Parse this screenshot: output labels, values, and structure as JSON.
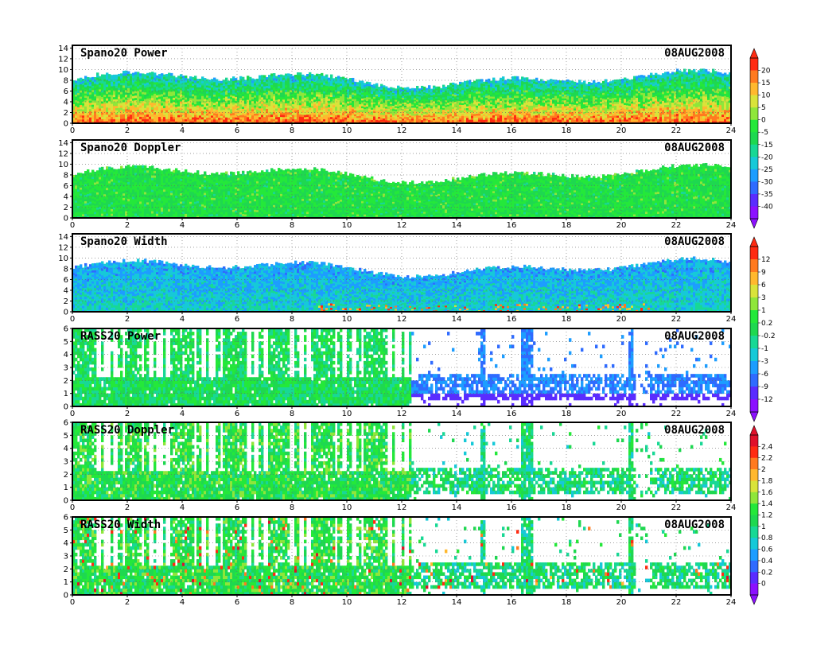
{
  "chart_data": [
    {
      "type": "heatmap",
      "title": "Spano20 Power",
      "date": "08AUG2008",
      "xlim": [
        0,
        24
      ],
      "xticks": [
        0,
        2,
        4,
        6,
        8,
        10,
        12,
        14,
        16,
        18,
        20,
        22,
        24
      ],
      "ylim": [
        0,
        14.5
      ],
      "yticks": [
        0,
        2,
        4,
        6,
        8,
        10,
        12,
        14
      ],
      "profile": "spano",
      "palette": "power",
      "bias": 0.62,
      "seed": 11,
      "grid": true
    },
    {
      "type": "heatmap",
      "title": "Spano20 Doppler",
      "date": "08AUG2008",
      "xlim": [
        0,
        24
      ],
      "xticks": [
        0,
        2,
        4,
        6,
        8,
        10,
        12,
        14,
        16,
        18,
        20,
        22,
        24
      ],
      "ylim": [
        0,
        14.5
      ],
      "yticks": [
        0,
        2,
        4,
        6,
        8,
        10,
        12,
        14
      ],
      "profile": "spano",
      "palette": "power",
      "bias": 0.45,
      "seed": 23,
      "grid": true
    },
    {
      "type": "heatmap",
      "title": "Spano20 Width",
      "date": "08AUG2008",
      "xlim": [
        0,
        24
      ],
      "xticks": [
        0,
        2,
        4,
        6,
        8,
        10,
        12,
        14,
        16,
        18,
        20,
        22,
        24
      ],
      "ylim": [
        0,
        14.5
      ],
      "yticks": [
        0,
        2,
        4,
        6,
        8,
        10,
        12,
        14
      ],
      "profile": "spano",
      "palette": "width",
      "bias": 0.32,
      "seed": 37,
      "grid": true
    },
    {
      "type": "heatmap",
      "title": "RASS20 Power",
      "date": "08AUG2008",
      "xlim": [
        0,
        24
      ],
      "xticks": [
        0,
        2,
        4,
        6,
        8,
        10,
        12,
        14,
        16,
        18,
        20,
        22,
        24
      ],
      "ylim": [
        0,
        6
      ],
      "yticks": [
        0,
        1,
        2,
        3,
        4,
        5,
        6
      ],
      "profile": "rass",
      "palette": "width",
      "bias": 0.5,
      "seed": 41,
      "grid": true
    },
    {
      "type": "heatmap",
      "title": "RASS20 Doppler",
      "date": "08AUG2008",
      "xlim": [
        0,
        24
      ],
      "xticks": [
        0,
        2,
        4,
        6,
        8,
        10,
        12,
        14,
        16,
        18,
        20,
        22,
        24
      ],
      "ylim": [
        0,
        6
      ],
      "yticks": [
        0,
        1,
        2,
        3,
        4,
        5,
        6
      ],
      "profile": "rass",
      "palette": "rassdop",
      "bias": 0.55,
      "seed": 53,
      "grid": true
    },
    {
      "type": "heatmap",
      "title": "RASS20 Width",
      "date": "08AUG2008",
      "xlim": [
        0,
        24
      ],
      "xticks": [
        0,
        2,
        4,
        6,
        8,
        10,
        12,
        14,
        16,
        18,
        20,
        22,
        24
      ],
      "ylim": [
        0,
        6
      ],
      "yticks": [
        0,
        1,
        2,
        3,
        4,
        5,
        6
      ],
      "profile": "rass",
      "palette": "rassdop",
      "bias": 0.45,
      "seed": 67,
      "grid": true
    }
  ],
  "colorbars": [
    {
      "labels": [
        "20",
        "15",
        "10",
        "5",
        "0",
        "-5",
        "-15",
        "-20",
        "-25",
        "-30",
        "-35",
        "-40"
      ],
      "palette": "power"
    },
    {
      "labels": [
        "12",
        "9",
        "6",
        "3",
        "1",
        "0.2",
        "-0.2",
        "-1",
        "-3",
        "-6",
        "-9",
        "-12"
      ],
      "palette": "width"
    },
    {
      "labels": [
        "2.4",
        "2.2",
        "2",
        "1.8",
        "1.6",
        "1.4",
        "1.2",
        "1",
        "0.8",
        "0.6",
        "0.4",
        "0.2",
        "0"
      ],
      "palette": "rassdop"
    }
  ],
  "palettes": {
    "power": [
      "#8c10ff",
      "#5a2cff",
      "#2f6bff",
      "#1d9dff",
      "#16c9d8",
      "#18d895",
      "#1ed850",
      "#24e83a",
      "#8fe63a",
      "#d9e33a",
      "#ffb82e",
      "#ff7a1f",
      "#ff2b12"
    ],
    "width": [
      "#8c10ff",
      "#5a2cff",
      "#2f6bff",
      "#1d9dff",
      "#16c9d8",
      "#18d895",
      "#1ed850",
      "#24e83a",
      "#8fe63a",
      "#d9e33a",
      "#ffb82e",
      "#ff7a1f",
      "#ff2b12"
    ],
    "rassdop": [
      "#8c10ff",
      "#5a2cff",
      "#2f6bff",
      "#1d9dff",
      "#16c9d8",
      "#18d895",
      "#1ed850",
      "#24e83a",
      "#8fe63a",
      "#d9e33a",
      "#ffb82e",
      "#ff7a1f",
      "#ff2b12",
      "#e0102a"
    ]
  }
}
